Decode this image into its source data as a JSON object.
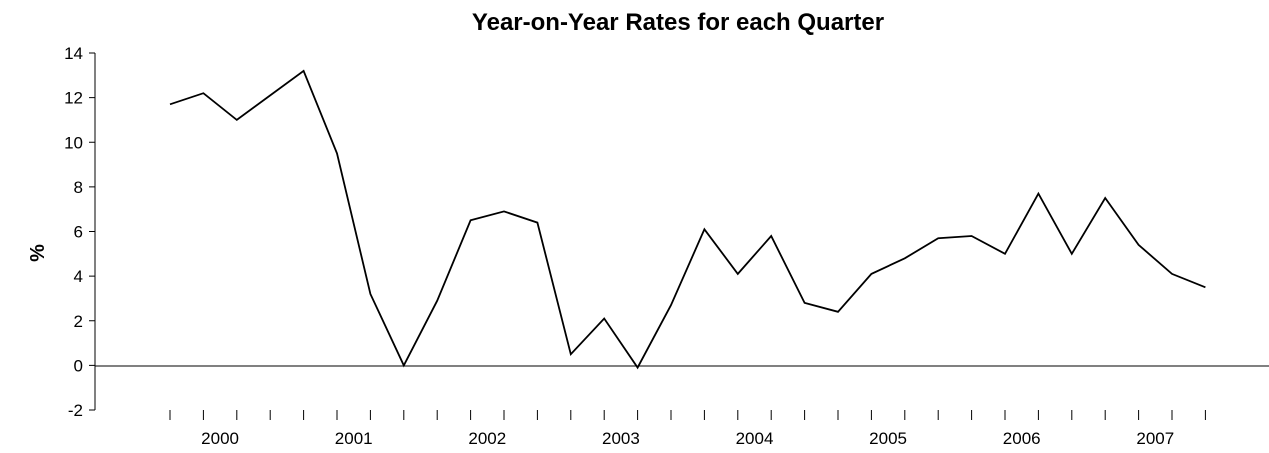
{
  "chart_data": {
    "type": "line",
    "title": "Year-on-Year Rates for each Quarter",
    "ylabel": "%",
    "xlabel": "",
    "ylim": [
      -2,
      14
    ],
    "yticks": [
      -2,
      0,
      2,
      4,
      6,
      8,
      10,
      12,
      14
    ],
    "year_labels": [
      "2000",
      "2001",
      "2002",
      "2003",
      "2004",
      "2005",
      "2006",
      "2007"
    ],
    "quarters_per_year": 4,
    "grid": false,
    "series": [
      {
        "values": [
          11.7,
          12.2,
          11.0,
          12.1,
          13.2,
          9.5,
          3.2,
          0.0,
          2.9,
          6.5,
          6.9,
          6.4,
          0.5,
          2.1,
          -0.1,
          2.7,
          6.1,
          4.1,
          5.8,
          2.8,
          2.4,
          4.1,
          4.8,
          5.7,
          5.8,
          5.0,
          7.7,
          5.0,
          7.5,
          5.4,
          4.1,
          3.5
        ],
        "color": "#000000"
      }
    ]
  }
}
